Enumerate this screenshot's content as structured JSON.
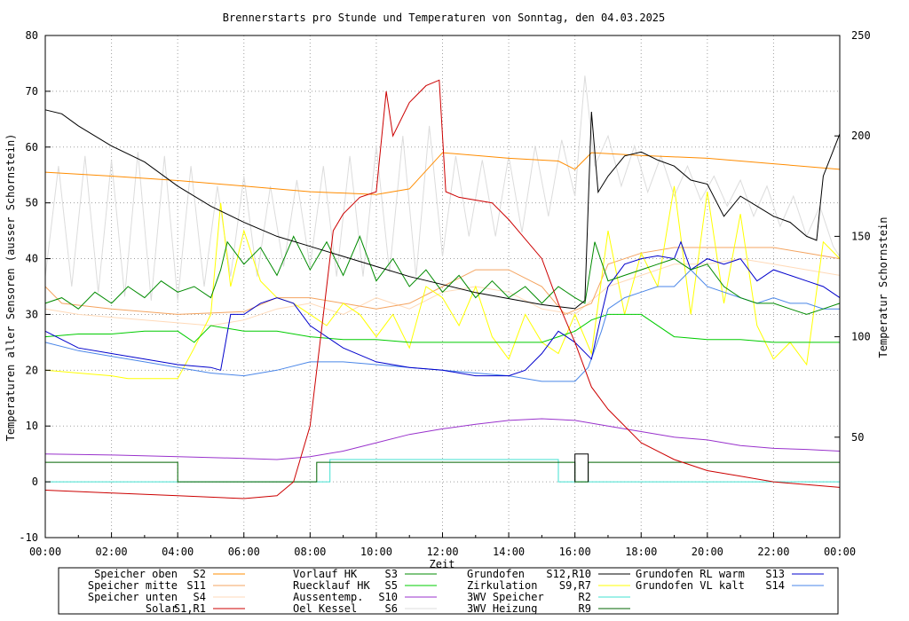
{
  "chart_data": {
    "type": "line",
    "title": "Brennerstarts pro Stunde und Temperaturen von Sonntag, den 04.03.2025",
    "xlabel": "Zeit",
    "ylabel": "Temperaturen aller Sensoren (ausser Schornstein)",
    "y2label": "Temperatur Schornstein",
    "xlim": [
      0,
      24
    ],
    "ylim": [
      -10,
      80
    ],
    "y2lim": [
      0,
      250
    ],
    "x_ticks": [
      "00:00",
      "02:00",
      "04:00",
      "06:00",
      "08:00",
      "10:00",
      "12:00",
      "14:00",
      "16:00",
      "18:00",
      "20:00",
      "22:00",
      "00:00"
    ],
    "y_ticks": [
      "-10",
      "0",
      "10",
      "20",
      "30",
      "40",
      "50",
      "60",
      "70",
      "80"
    ],
    "y2_ticks": [
      "50",
      "100",
      "150",
      "200",
      "250"
    ],
    "grid": true,
    "colors": {
      "speicher_oben": "#ff8c00",
      "speicher_mitte": "#f4a460",
      "speicher_unten": "#ffdab9",
      "solar": "#cc0000",
      "vorlauf_hk": "#008b00",
      "ruecklauf_hk": "#00cc00",
      "aussentemp": "#9932cc",
      "oel_kessel": "#dcdcdc",
      "grundofen": "#000000",
      "zirkulation": "#ffff00",
      "speicher_3wv": "#40e0d0",
      "heizung_3wv": "#006400",
      "rl_warm": "#0000cc",
      "vl_kalt": "#4a86e8",
      "y2_label": "#ff66ff"
    },
    "legend": [
      {
        "name": "Speicher oben",
        "sensor": "S2",
        "key": "speicher_oben"
      },
      {
        "name": "Speicher mitte",
        "sensor": "S11",
        "key": "speicher_mitte"
      },
      {
        "name": "Speicher unten",
        "sensor": "S4",
        "key": "speicher_unten"
      },
      {
        "name": "Solar",
        "sensor": "S1,R1",
        "key": "solar"
      },
      {
        "name": "Vorlauf HK",
        "sensor": "S3",
        "key": "vorlauf_hk"
      },
      {
        "name": "Ruecklauf HK",
        "sensor": "S5",
        "key": "ruecklauf_hk"
      },
      {
        "name": "Aussentemp.",
        "sensor": "S10",
        "key": "aussentemp"
      },
      {
        "name": "Oel Kessel",
        "sensor": "S6",
        "key": "oel_kessel"
      },
      {
        "name": "Grundofen",
        "sensor": "S12,R10",
        "key": "grundofen"
      },
      {
        "name": "Zirkulation",
        "sensor": "S9,R7",
        "key": "zirkulation"
      },
      {
        "name": "3WV Speicher",
        "sensor": "R2",
        "key": "speicher_3wv"
      },
      {
        "name": "3WV Heizung",
        "sensor": "R9",
        "key": "heizung_3wv"
      },
      {
        "name": "Grundofen RL warm",
        "sensor": "S13",
        "key": "rl_warm"
      },
      {
        "name": "Grundofen VL kalt",
        "sensor": "S14",
        "key": "vl_kalt"
      }
    ],
    "series": [
      {
        "key": "speicher_oben",
        "axis": "y",
        "x": [
          0,
          2,
          4,
          6,
          8,
          10,
          11,
          12,
          14,
          15.5,
          16,
          16.5,
          18,
          20,
          22,
          24
        ],
        "y": [
          55.5,
          54.8,
          54,
          53,
          52,
          51.5,
          52.5,
          59,
          58,
          57.5,
          56,
          59,
          58.5,
          58,
          57,
          56
        ]
      },
      {
        "key": "speicher_mitte",
        "axis": "y",
        "x": [
          0,
          0.5,
          2,
          4,
          6,
          7,
          8,
          9,
          10,
          11,
          12,
          13,
          14,
          15,
          15.7,
          16.5,
          17,
          18,
          19,
          20,
          21,
          22,
          23,
          24
        ],
        "y": [
          35,
          32,
          31,
          30,
          30.5,
          33,
          33,
          32,
          31,
          32,
          35,
          38,
          38,
          35,
          30,
          32,
          39,
          41,
          42,
          42,
          42,
          42,
          41,
          40
        ]
      },
      {
        "key": "speicher_unten",
        "axis": "y",
        "x": [
          0,
          1,
          2,
          3,
          4,
          5,
          6,
          7,
          8,
          9,
          10,
          11,
          12,
          13,
          14,
          15,
          16,
          17,
          18,
          19,
          20,
          21,
          22,
          23,
          24
        ],
        "y": [
          31,
          30,
          29.5,
          29,
          28.5,
          28,
          29,
          31,
          32,
          30,
          33,
          31,
          34,
          35,
          34,
          31,
          30,
          35,
          37,
          39,
          39,
          40,
          39,
          38,
          37
        ]
      },
      {
        "key": "solar",
        "axis": "y",
        "x": [
          0,
          2,
          4,
          6,
          7,
          7.5,
          8,
          8.4,
          8.7,
          9,
          9.5,
          10,
          10.3,
          10.5,
          11,
          11.5,
          11.9,
          12.1,
          12.5,
          13.5,
          14,
          15,
          15.5,
          16,
          16.5,
          17,
          18,
          19,
          20,
          21,
          22,
          23,
          24
        ],
        "y": [
          -1.5,
          -2,
          -2.5,
          -3,
          -2.5,
          0,
          10,
          30,
          45,
          48,
          51,
          52,
          70,
          62,
          68,
          71,
          72,
          52,
          51,
          50,
          47,
          40,
          32,
          25,
          17,
          13,
          7,
          4,
          2,
          1,
          0,
          -0.5,
          -1
        ]
      },
      {
        "key": "vorlauf_hk",
        "axis": "y",
        "x": [
          0,
          0.5,
          1,
          1.5,
          2,
          2.5,
          3,
          3.5,
          4,
          4.5,
          5,
          5.3,
          5.5,
          6,
          6.5,
          7,
          7.5,
          8,
          8.5,
          9,
          9.5,
          10,
          10.5,
          11,
          11.5,
          12,
          12.5,
          13,
          13.5,
          14,
          14.5,
          15,
          15.5,
          16,
          16.3,
          16.6,
          17,
          17.5,
          18,
          18.5,
          19,
          19.5,
          20,
          20.5,
          21,
          21.5,
          22,
          22.5,
          23,
          23.5,
          24
        ],
        "y": [
          32,
          33,
          31,
          34,
          32,
          35,
          33,
          36,
          34,
          35,
          33,
          38,
          43,
          39,
          42,
          37,
          44,
          38,
          43,
          37,
          44,
          36,
          40,
          35,
          38,
          34,
          37,
          33,
          36,
          33,
          35,
          32,
          35,
          33,
          32,
          43,
          36,
          37,
          38,
          39,
          40,
          38,
          39,
          35,
          33,
          32,
          32,
          31,
          30,
          31,
          32
        ]
      },
      {
        "key": "ruecklauf_hk",
        "axis": "y",
        "x": [
          0,
          1,
          2,
          3,
          4,
          4.5,
          5,
          6,
          7,
          8,
          9,
          10,
          11,
          12,
          13,
          14,
          15,
          15.5,
          16,
          16.5,
          17,
          18,
          19,
          20,
          21,
          22,
          23,
          24
        ],
        "y": [
          26,
          26.5,
          26.5,
          27,
          27,
          25,
          28,
          27,
          27,
          26,
          25.5,
          25.5,
          25,
          25,
          25,
          25,
          25,
          26,
          27,
          29,
          30,
          30,
          26,
          25.5,
          25.5,
          25,
          25,
          25
        ]
      },
      {
        "key": "aussentemp",
        "axis": "y",
        "x": [
          0,
          2,
          4,
          6,
          7,
          8,
          9,
          10,
          11,
          12,
          13,
          14,
          15,
          16,
          17,
          18,
          19,
          20,
          21,
          22,
          23,
          24
        ],
        "y": [
          5,
          4.8,
          4.5,
          4.2,
          4,
          4.5,
          5.5,
          7,
          8.5,
          9.5,
          10.3,
          11,
          11.3,
          11,
          10,
          9,
          8,
          7.5,
          6.5,
          6,
          5.8,
          5.5
        ]
      },
      {
        "key": "oel_kessel",
        "axis": "y2",
        "x": [
          0,
          0.4,
          0.8,
          1.2,
          1.6,
          2,
          2.4,
          2.8,
          3.2,
          3.6,
          4,
          4.4,
          4.8,
          5.2,
          5.6,
          6,
          6.4,
          6.8,
          7.2,
          7.6,
          8,
          8.4,
          8.8,
          9.2,
          9.6,
          10,
          10.4,
          10.8,
          11.2,
          11.6,
          12,
          12.4,
          12.8,
          13.2,
          13.6,
          14,
          14.4,
          14.8,
          15.2,
          15.6,
          16,
          16.3,
          16.6,
          17,
          17.4,
          17.8,
          18.2,
          18.6,
          19,
          19.4,
          19.8,
          20.2,
          20.6,
          21,
          21.4,
          21.8,
          22.2,
          22.6,
          23,
          23.4,
          23.8,
          24
        ],
        "y": [
          130,
          185,
          125,
          190,
          122,
          188,
          120,
          192,
          118,
          190,
          118,
          185,
          125,
          175,
          130,
          180,
          130,
          175,
          135,
          178,
          135,
          185,
          130,
          190,
          130,
          195,
          132,
          200,
          130,
          205,
          140,
          190,
          150,
          188,
          150,
          190,
          152,
          195,
          160,
          198,
          170,
          230,
          185,
          200,
          175,
          195,
          172,
          190,
          170,
          185,
          168,
          180,
          165,
          178,
          160,
          175,
          155,
          170,
          150,
          165,
          145,
          140
        ]
      },
      {
        "key": "grundofen",
        "axis": "y2",
        "x": [
          0,
          0.5,
          1,
          2,
          3,
          4,
          5,
          6,
          7,
          8,
          9,
          10,
          11,
          12,
          13,
          14,
          15,
          16,
          16.3,
          16.5,
          16.7,
          17,
          17.5,
          18,
          18.5,
          19,
          19.5,
          20,
          20.5,
          21,
          21.5,
          22,
          22.5,
          23,
          23.3,
          23.5,
          24
        ],
        "y": [
          213,
          211,
          205,
          195,
          187,
          175,
          165,
          157,
          150,
          145,
          140,
          135,
          130,
          126,
          122,
          119,
          116,
          114,
          118,
          212,
          172,
          180,
          190,
          192,
          188,
          185,
          178,
          176,
          160,
          170,
          165,
          160,
          157,
          150,
          148,
          180,
          201
        ]
      },
      {
        "key": "zirkulation",
        "axis": "y",
        "x": [
          0,
          1,
          2,
          2.5,
          3,
          4,
          4.5,
          5,
          5.3,
          5.6,
          6,
          6.5,
          7,
          7.5,
          8,
          8.5,
          9,
          9.5,
          10,
          10.5,
          11,
          11.5,
          12,
          12.5,
          13,
          13.5,
          14,
          14.5,
          15,
          15.5,
          16,
          16.5,
          17,
          17.5,
          18,
          18.5,
          19,
          19.5,
          20,
          20.5,
          21,
          21.5,
          22,
          22.5,
          23,
          23.5,
          24
        ],
        "y": [
          20,
          19.5,
          19,
          18.5,
          18.5,
          18.5,
          24,
          30,
          50,
          35,
          45,
          36,
          33,
          32,
          30,
          28,
          32,
          30,
          26,
          30,
          24,
          35,
          33,
          28,
          35,
          26,
          22,
          30,
          25,
          23,
          30,
          23,
          45,
          30,
          41,
          35,
          53,
          30,
          52,
          32,
          48,
          28,
          22,
          25,
          21,
          43,
          40
        ]
      },
      {
        "key": "speicher_3wv",
        "axis": "y",
        "x": [
          0,
          8.6,
          8.6,
          15.5,
          15.5,
          24
        ],
        "y": [
          0,
          0,
          4,
          4,
          0,
          0
        ]
      },
      {
        "key": "heizung_3wv",
        "axis": "y",
        "x": [
          0,
          4,
          4,
          8.2,
          8.2,
          16,
          16,
          16.4,
          16.4,
          24
        ],
        "y": [
          3.5,
          3.5,
          0,
          0,
          3.5,
          3.5,
          0,
          0,
          3.5,
          3.5
        ]
      },
      {
        "key": "rl_warm",
        "axis": "y",
        "x": [
          0,
          1,
          2,
          3,
          4,
          5,
          5.3,
          5.6,
          6,
          6.5,
          7,
          7.5,
          8,
          9,
          10,
          11,
          12,
          13,
          14,
          14.5,
          15,
          15.5,
          16,
          16.5,
          16.8,
          17,
          17.5,
          18,
          18.5,
          19,
          19.2,
          19.5,
          20,
          20.5,
          21,
          21.5,
          22,
          22.5,
          23,
          23.5,
          24
        ],
        "y": [
          27,
          24,
          23,
          22,
          21,
          20.5,
          20,
          30,
          30,
          32,
          33,
          32,
          28,
          24,
          21.5,
          20.5,
          20,
          19,
          19,
          20,
          23,
          27,
          25,
          22,
          30,
          35,
          39,
          40,
          40.5,
          40,
          43,
          38,
          40,
          39,
          40,
          36,
          38,
          37,
          36,
          35,
          33
        ]
      },
      {
        "key": "vl_kalt",
        "axis": "y",
        "x": [
          0,
          1,
          2,
          3,
          4,
          5,
          6,
          7,
          8,
          9,
          10,
          11,
          12,
          13,
          14,
          15,
          16,
          16.4,
          16.8,
          17,
          17.5,
          18,
          18.5,
          19,
          19.5,
          20,
          20.5,
          21,
          21.5,
          22,
          22.5,
          23,
          23.5,
          24
        ],
        "y": [
          25,
          23.5,
          22.5,
          21.5,
          20.5,
          19.5,
          19,
          20,
          21.5,
          21.5,
          21,
          20.5,
          20,
          19.5,
          19,
          18,
          18,
          20.5,
          27,
          31,
          33,
          34,
          35,
          35,
          38,
          35,
          34,
          33,
          32,
          33,
          32,
          32,
          31,
          31
        ]
      }
    ],
    "burner_starts": {
      "key": "grundofen",
      "x": [
        16,
        16,
        16.4,
        16.4
      ],
      "y": [
        0,
        5,
        5,
        0
      ]
    }
  }
}
